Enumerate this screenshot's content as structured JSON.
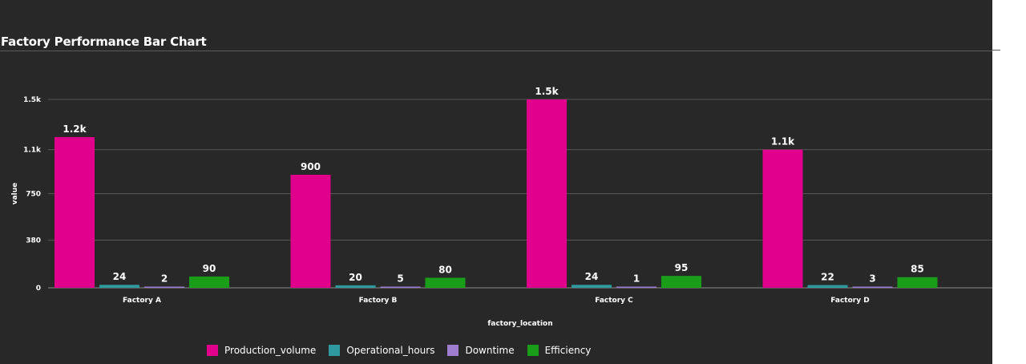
{
  "chart_data": {
    "type": "bar",
    "title": "Factory Performance Bar Chart",
    "xlabel": "factory_location",
    "ylabel": "value",
    "categories": [
      "Factory A",
      "Factory B",
      "Factory C",
      "Factory D"
    ],
    "series": [
      {
        "name": "Production_volume",
        "color": "#e0008c",
        "values": [
          1200,
          900,
          1500,
          1100
        ],
        "labels": [
          "1.2k",
          "900",
          "1.5k",
          "1.1k"
        ]
      },
      {
        "name": "Operational_hours",
        "color": "#2e9aa0",
        "values": [
          24,
          20,
          24,
          22
        ],
        "labels": [
          "24",
          "20",
          "24",
          "22"
        ]
      },
      {
        "name": "Downtime",
        "color": "#9f7ecf",
        "values": [
          2,
          5,
          1,
          3
        ],
        "labels": [
          "2",
          "5",
          "1",
          "3"
        ]
      },
      {
        "name": "Efficiency",
        "color": "#1a9e1a",
        "values": [
          90,
          80,
          95,
          85
        ],
        "labels": [
          "90",
          "80",
          "95",
          "85"
        ]
      }
    ],
    "yticks": [
      0,
      380,
      750,
      1100,
      1500
    ],
    "ytick_labels": [
      "0",
      "380",
      "750",
      "1.1k",
      "1.5k"
    ],
    "ylim": [
      0,
      1500
    ],
    "grid": true,
    "legend_position": "bottom"
  }
}
